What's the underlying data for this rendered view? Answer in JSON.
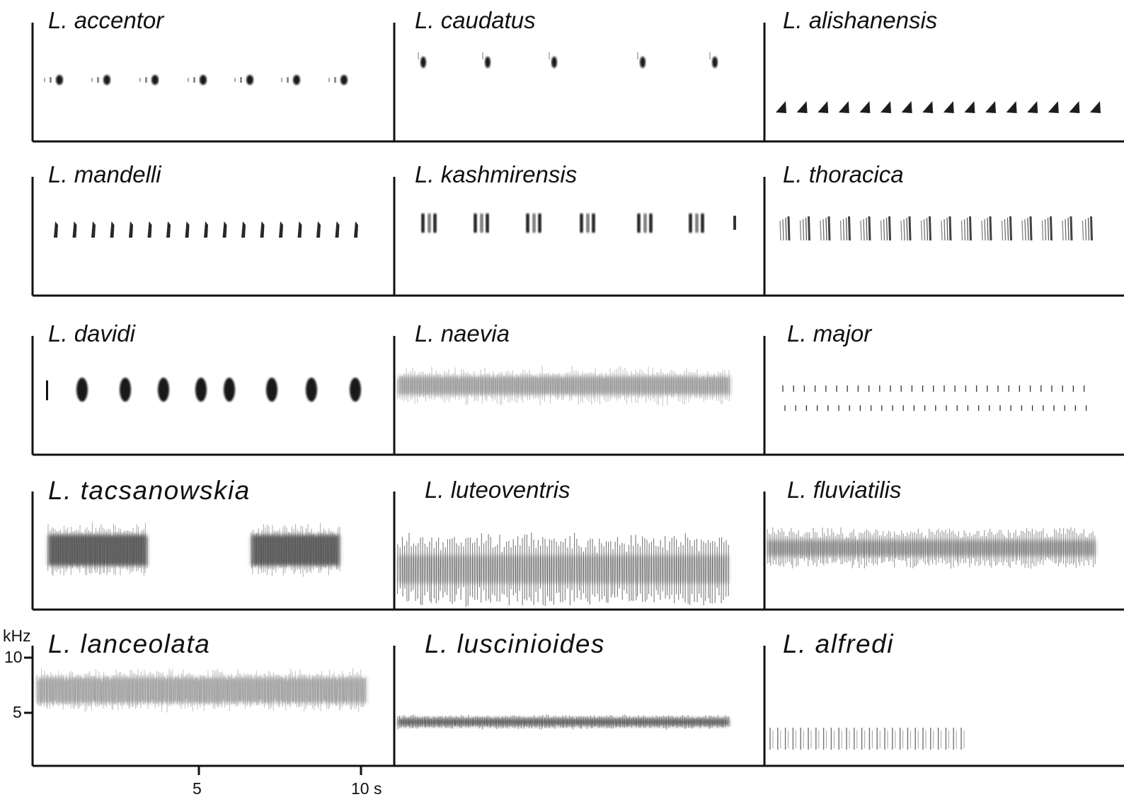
{
  "panels": [
    {
      "name": "L. accentor",
      "pattern": "isolated-notes-with-pre-clicks",
      "row": 1,
      "col": 1
    },
    {
      "name": "L. caudatus",
      "pattern": "sparse-single-notes",
      "row": 1,
      "col": 2
    },
    {
      "name": "L. alishanensis",
      "pattern": "repeated-triangular-notes",
      "row": 1,
      "col": 3
    },
    {
      "name": "L. mandelli",
      "pattern": "repeated-short-notes",
      "row": 2,
      "col": 1
    },
    {
      "name": "L. kashmirensis",
      "pattern": "paired-note-groups",
      "row": 2,
      "col": 2
    },
    {
      "name": "L. thoracica",
      "pattern": "continuous-repeated-note-groups",
      "row": 2,
      "col": 3
    },
    {
      "name": "L. davidi",
      "pattern": "spaced-broadband-notes",
      "row": 3,
      "col": 1
    },
    {
      "name": "L. naevia",
      "pattern": "continuous-mid-frequency-buzz",
      "row": 3,
      "col": 2
    },
    {
      "name": "L. major",
      "pattern": "two-rows-of-fine-ticks",
      "row": 3,
      "col": 3
    },
    {
      "name": "L. tacsanowskia",
      "pattern": "two-dense-buzz-blocks",
      "row": 4,
      "col": 1
    },
    {
      "name": "L. luteoventris",
      "pattern": "dense-striated-band",
      "row": 4,
      "col": 2
    },
    {
      "name": "L. fluviatilis",
      "pattern": "continuous-striated-band",
      "row": 4,
      "col": 3
    },
    {
      "name": "L. lanceolata",
      "pattern": "continuous-high-buzz",
      "row": 5,
      "col": 1
    },
    {
      "name": "L. luscinioides",
      "pattern": "continuous-low-reel",
      "row": 5,
      "col": 2
    },
    {
      "name": "L. alfredi",
      "pattern": "short-striated-series",
      "row": 5,
      "col": 3
    }
  ],
  "y_axis": {
    "unit": "kHz",
    "ticks": [
      "10",
      "5"
    ],
    "tick_values": [
      10,
      5
    ]
  },
  "x_axis": {
    "ticks": [
      "5",
      "10 s"
    ],
    "tick_values": [
      5,
      10
    ]
  }
}
